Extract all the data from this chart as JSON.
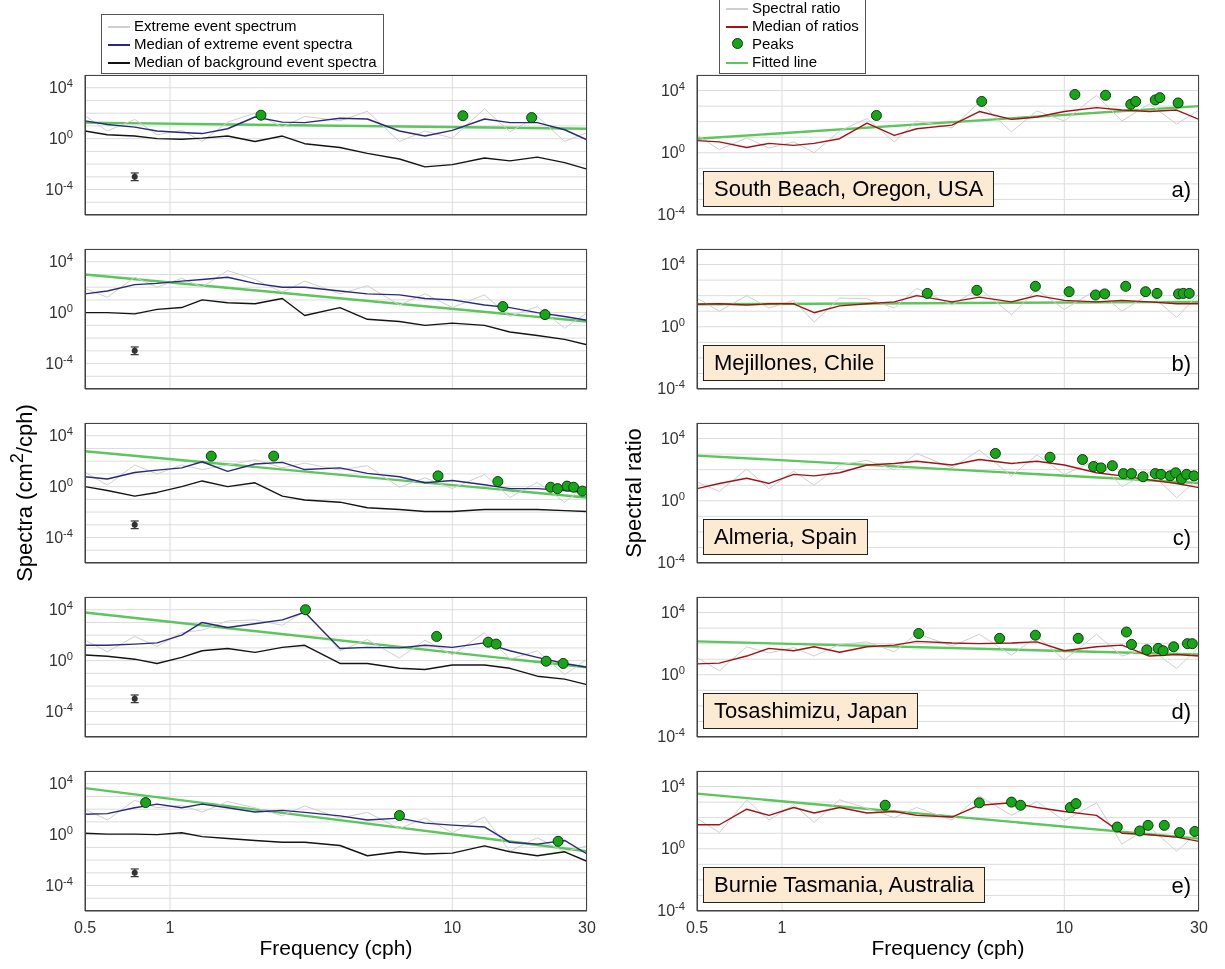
{
  "chart_data": [
    {
      "type": "line",
      "x": [
        0.5,
        0.6,
        0.75,
        0.9,
        1.1,
        1.3,
        1.6,
        2,
        2.5,
        3,
        4,
        5,
        6.5,
        8,
        10,
        13,
        16,
        20,
        25,
        30
      ],
      "xlim": [
        0.5,
        30
      ],
      "xticks": [
        0.5,
        1,
        10,
        30
      ],
      "ylim": [
        1e-06,
        100000
      ],
      "yticks": [
        {
          "value": 1e-06,
          "label": null
        },
        {
          "value": 1e-05,
          "label": null
        },
        {
          "value": 0.0001,
          "label": "10$^{-4}$"
        },
        {
          "value": 0.001,
          "label": null
        },
        {
          "value": 0.01,
          "label": null
        },
        {
          "value": 0.1,
          "label": null
        },
        {
          "value": 1,
          "label": "10$^{0}$"
        },
        {
          "value": 10,
          "label": null
        },
        {
          "value": 100,
          "label": null
        },
        {
          "value": 1000,
          "label": null
        },
        {
          "value": 10000,
          "label": "10$^{4}$"
        },
        {
          "value": 100000,
          "label": null
        }
      ],
      "log": "xy",
      "grid": true,
      "tick_labels": "y",
      "legend": "top left",
      "series": [
        {
          "name": "Extreme event spectrum",
          "color": "#cfcfcf",
          "values": [
            63,
            4,
            32,
            2,
            4.5,
            0.6,
            20,
            100,
            8,
            56,
            25,
            140,
            0.6,
            4,
            1.1,
            220,
            3.5,
            56,
            0.6,
            3
          ]
        },
        {
          "name": "Median of extreme event spectra",
          "color": "#2a2a7a",
          "values": [
            25,
            13,
            8,
            4,
            3,
            2.5,
            6,
            50,
            20,
            18,
            40,
            35,
            4,
            1.6,
            4.5,
            35,
            18,
            18,
            5,
            0.8
          ]
        },
        {
          "name": "Median of background event spectra",
          "color": "#141414",
          "values": [
            4,
            2,
            1.6,
            1,
            0.9,
            1.1,
            1.6,
            0.6,
            1.6,
            0.4,
            0.2,
            0.07,
            0.025,
            0.006,
            0.009,
            0.03,
            0.018,
            0.035,
            0.013,
            0.004
          ]
        },
        {
          "type": "line",
          "color": "#5cc55c",
          "x": [
            0.5,
            30
          ],
          "values": [
            18,
            6
          ]
        },
        {
          "type": "scatter",
          "marker": "circle",
          "color": "#19a519",
          "x": [
            2.1,
            10.9,
            19.1
          ],
          "values": [
            70,
            63,
            45
          ]
        },
        {
          "type": "scatter",
          "color": "#333333",
          "x": [
            0.75
          ],
          "values": [
            0.001
          ],
          "errors": [
            [
              0.0005,
              0.002
            ]
          ]
        }
      ]
    },
    {
      "type": "line",
      "x": [
        0.5,
        0.6,
        0.75,
        0.9,
        1.1,
        1.3,
        1.6,
        2,
        2.5,
        3,
        4,
        5,
        6.5,
        8,
        10,
        13,
        16,
        20,
        25,
        30
      ],
      "xlim": [
        0.5,
        30
      ],
      "xticks": [
        0.5,
        1,
        10,
        30
      ],
      "ylim": [
        1e-06,
        100000
      ],
      "yticks": [
        {
          "value": 1e-06,
          "label": null
        },
        {
          "value": 1e-05,
          "label": null
        },
        {
          "value": 0.0001,
          "label": "10$^{-4}$"
        },
        {
          "value": 0.001,
          "label": null
        },
        {
          "value": 0.01,
          "label": null
        },
        {
          "value": 0.1,
          "label": null
        },
        {
          "value": 1,
          "label": "10$^{0}$"
        },
        {
          "value": 10,
          "label": null
        },
        {
          "value": 100,
          "label": null
        },
        {
          "value": 1000,
          "label": null
        },
        {
          "value": 10000,
          "label": "10$^{4}$"
        },
        {
          "value": 100000,
          "label": null
        }
      ],
      "log": "xy",
      "grid": true,
      "tick_labels": "y",
      "series": [
        {
          "color": "#cfcfcf",
          "values": [
            80,
            16,
            600,
            100,
            500,
            100,
            2000,
            400,
            40,
            300,
            30,
            130,
            4,
            30,
            2.5,
            25,
            0.5,
            3,
            0.06,
            1
          ]
        },
        {
          "color": "#2a2a7a",
          "values": [
            30,
            50,
            160,
            200,
            300,
            400,
            600,
            200,
            100,
            100,
            50,
            30,
            25,
            13,
            10,
            4,
            2.5,
            1,
            0.5,
            0.25
          ]
        },
        {
          "color": "#141414",
          "values": [
            1,
            1,
            0.8,
            1.8,
            2.5,
            10,
            6,
            5,
            13,
            0.6,
            2.5,
            0.3,
            0.2,
            0.1,
            0.15,
            0.1,
            0.03,
            0.016,
            0.008,
            0.003
          ]
        },
        {
          "type": "line",
          "color": "#5cc55c",
          "x": [
            0.5,
            30
          ],
          "values": [
            1000,
            0.2
          ]
        },
        {
          "type": "scatter",
          "marker": "circle",
          "color": "#19a519",
          "x": [
            15.1,
            21.3
          ],
          "values": [
            3,
            0.7
          ]
        },
        {
          "type": "scatter",
          "color": "#333333",
          "x": [
            0.75
          ],
          "values": [
            0.001
          ],
          "errors": [
            [
              0.0005,
              0.002
            ]
          ]
        }
      ]
    },
    {
      "type": "line",
      "x": [
        0.5,
        0.6,
        0.75,
        0.9,
        1.1,
        1.3,
        1.6,
        2,
        2.5,
        3,
        4,
        5,
        6.5,
        8,
        10,
        13,
        16,
        20,
        25,
        30
      ],
      "xlim": [
        0.5,
        30
      ],
      "xticks": [
        0.5,
        1,
        10,
        30
      ],
      "ylim": [
        1e-06,
        100000
      ],
      "yticks": [
        {
          "value": 1e-06,
          "label": null
        },
        {
          "value": 1e-05,
          "label": null
        },
        {
          "value": 0.0001,
          "label": "10$^{-4}$"
        },
        {
          "value": 0.001,
          "label": null
        },
        {
          "value": 0.01,
          "label": null
        },
        {
          "value": 0.1,
          "label": null
        },
        {
          "value": 1,
          "label": "10$^{0}$"
        },
        {
          "value": 10,
          "label": null
        },
        {
          "value": 100,
          "label": null
        },
        {
          "value": 1000,
          "label": null
        },
        {
          "value": 10000,
          "label": "10$^{4}$"
        },
        {
          "value": 100000,
          "label": null
        }
      ],
      "log": "xy",
      "grid": true,
      "tick_labels": "y",
      "ylabel": "Spectra (cm$^{2}$/cph)",
      "series": [
        {
          "color": "#cfcfcf",
          "values": [
            14,
            1.3,
            50,
            10,
            50,
            22,
            50,
            130,
            30,
            70,
            20,
            45,
            0.9,
            5,
            0.7,
            9,
            0.14,
            2.2,
            0.06,
            1.4
          ]
        },
        {
          "color": "#2a2a7a",
          "values": [
            6,
            4,
            13,
            20,
            30,
            90,
            16,
            60,
            80,
            22,
            30,
            11,
            6,
            2,
            3,
            1.4,
            0.7,
            0.7,
            0.5,
            0.35
          ]
        },
        {
          "color": "#141414",
          "values": [
            1,
            0.5,
            0.18,
            0.35,
            1,
            2.8,
            1,
            2,
            0.18,
            0.09,
            0.06,
            0.022,
            0.016,
            0.011,
            0.011,
            0.016,
            0.016,
            0.016,
            0.013,
            0.011
          ]
        },
        {
          "type": "line",
          "color": "#5cc55c",
          "x": [
            0.5,
            30
          ],
          "values": [
            600,
            0.14
          ]
        },
        {
          "type": "scatter",
          "marker": "circle",
          "color": "#19a519",
          "x": [
            1.4,
            2.33,
            8.9,
            14.5,
            22.3,
            23.6,
            25.5,
            26.9,
            28.9
          ],
          "values": [
            250,
            250,
            7,
            2.5,
            0.9,
            0.7,
            1.1,
            0.9,
            0.45
          ]
        },
        {
          "type": "scatter",
          "color": "#333333",
          "x": [
            0.75
          ],
          "values": [
            0.001
          ],
          "errors": [
            [
              0.0005,
              0.002
            ]
          ]
        }
      ]
    },
    {
      "type": "line",
      "x": [
        0.5,
        0.6,
        0.75,
        0.9,
        1.1,
        1.3,
        1.6,
        2,
        2.5,
        3,
        4,
        5,
        6.5,
        8,
        10,
        13,
        16,
        20,
        25,
        30
      ],
      "xlim": [
        0.5,
        30
      ],
      "xticks": [
        0.5,
        1,
        10,
        30
      ],
      "ylim": [
        1e-06,
        100000
      ],
      "yticks": [
        {
          "value": 1e-06,
          "label": null
        },
        {
          "value": 1e-05,
          "label": null
        },
        {
          "value": 0.0001,
          "label": "10$^{-4}$"
        },
        {
          "value": 0.001,
          "label": null
        },
        {
          "value": 0.01,
          "label": null
        },
        {
          "value": 0.1,
          "label": null
        },
        {
          "value": 1,
          "label": "10$^{0}$"
        },
        {
          "value": 10,
          "label": null
        },
        {
          "value": 100,
          "label": null
        },
        {
          "value": 1000,
          "label": null
        },
        {
          "value": 10000,
          "label": "10$^{4}$"
        },
        {
          "value": 100000,
          "label": null
        }
      ],
      "log": "xy",
      "grid": true,
      "tick_labels": "y",
      "series": [
        {
          "color": "#cfcfcf",
          "values": [
            40,
            5,
            80,
            13,
            160,
            250,
            1300,
            1600,
            600,
            8000,
            6,
            45,
            1.6,
            40,
            2.8,
            160,
            1.3,
            6,
            0.08,
            1.3
          ]
        },
        {
          "color": "#2a2a7a",
          "values": [
            16,
            16,
            20,
            25,
            100,
            1000,
            400,
            800,
            1600,
            6300,
            9,
            11,
            10,
            16,
            11,
            25,
            6,
            1.8,
            0.6,
            0.3
          ]
        },
        {
          "color": "#141414",
          "values": [
            2.8,
            2.2,
            1.3,
            0.6,
            1.8,
            6,
            9,
            4.5,
            11,
            16,
            0.6,
            0.6,
            0.25,
            0.2,
            0.45,
            0.45,
            0.25,
            0.06,
            0.035,
            0.013
          ]
        },
        {
          "type": "line",
          "color": "#5cc55c",
          "x": [
            0.5,
            30
          ],
          "values": [
            6000,
            0.3
          ]
        },
        {
          "type": "scatter",
          "marker": "circle",
          "color": "#19a519",
          "x": [
            3.02,
            8.8,
            13.4,
            14.3,
            21.5,
            24.7
          ],
          "values": [
            10000,
            80,
            28,
            20,
            0.9,
            0.6
          ]
        },
        {
          "type": "scatter",
          "color": "#333333",
          "x": [
            0.75
          ],
          "values": [
            0.001
          ],
          "errors": [
            [
              0.0005,
              0.002
            ]
          ]
        }
      ]
    },
    {
      "type": "line",
      "x": [
        0.5,
        0.6,
        0.75,
        0.9,
        1.1,
        1.3,
        1.6,
        2,
        2.5,
        3,
        4,
        5,
        6.5,
        8,
        10,
        13,
        16,
        20,
        25,
        30
      ],
      "xlim": [
        0.5,
        30
      ],
      "xticks": [
        0.5,
        1,
        10,
        30
      ],
      "ylim": [
        1e-06,
        100000
      ],
      "yticks": [
        {
          "value": 1e-06,
          "label": null
        },
        {
          "value": 1e-05,
          "label": null
        },
        {
          "value": 0.0001,
          "label": "10$^{-4}$"
        },
        {
          "value": 0.001,
          "label": null
        },
        {
          "value": 0.01,
          "label": null
        },
        {
          "value": 0.1,
          "label": null
        },
        {
          "value": 1,
          "label": "10$^{0}$"
        },
        {
          "value": 10,
          "label": null
        },
        {
          "value": 100,
          "label": null
        },
        {
          "value": 1000,
          "label": null
        },
        {
          "value": 10000,
          "label": "10$^{4}$"
        },
        {
          "value": 100000,
          "label": null
        }
      ],
      "log": "xy",
      "grid": true,
      "xlabel": "Frequency (cph)",
      "series": [
        {
          "color": "#cfcfcf",
          "values": [
            100,
            14,
            500,
            130,
            200,
            60,
            400,
            130,
            30,
            180,
            20,
            56,
            3,
            20,
            1.4,
            25,
            0.05,
            0.56,
            0.045,
            0.13
          ]
        },
        {
          "color": "#2a2a7a",
          "values": [
            40,
            45,
            130,
            250,
            130,
            250,
            130,
            60,
            80,
            56,
            30,
            14,
            20,
            8,
            5.6,
            4,
            0.25,
            0.18,
            0.35,
            0.03
          ]
        },
        {
          "color": "#141414",
          "values": [
            1.3,
            1.1,
            1.1,
            1,
            1.4,
            0.7,
            0.5,
            0.35,
            0.25,
            0.25,
            0.14,
            0.022,
            0.045,
            0.03,
            0.035,
            0.13,
            0.045,
            0.022,
            0.045,
            0.008
          ]
        },
        {
          "type": "line",
          "color": "#5cc55c",
          "x": [
            0.5,
            30
          ],
          "values": [
            4500,
            0.05
          ]
        },
        {
          "type": "scatter",
          "marker": "circle",
          "color": "#19a519",
          "x": [
            0.82,
            6.5,
            23.7
          ],
          "values": [
            330,
            32,
            0.3
          ]
        },
        {
          "type": "scatter",
          "color": "#333333",
          "x": [
            0.75
          ],
          "values": [
            0.001
          ],
          "errors": [
            [
              0.0005,
              0.002
            ]
          ]
        }
      ]
    },
    {
      "type": "line",
      "x": [
        0.5,
        0.6,
        0.75,
        0.9,
        1.1,
        1.3,
        1.6,
        2,
        2.5,
        3,
        4,
        5,
        6.5,
        8,
        10,
        13,
        16,
        20,
        25,
        30
      ],
      "xlim": [
        0.5,
        30
      ],
      "xticks": [
        0.5,
        1,
        10,
        30
      ],
      "ylim": [
        0.0001,
        100000
      ],
      "yticks": [
        {
          "value": 0.0001,
          "label": "10$^{-4}$"
        },
        {
          "value": 0.001,
          "label": null
        },
        {
          "value": 0.01,
          "label": null
        },
        {
          "value": 0.1,
          "label": null
        },
        {
          "value": 1,
          "label": "10$^{0}$"
        },
        {
          "value": 10,
          "label": null
        },
        {
          "value": 100,
          "label": null
        },
        {
          "value": 1000,
          "label": null
        },
        {
          "value": 10000,
          "label": "10$^{4}$"
        },
        {
          "value": 100000,
          "label": null
        }
      ],
      "log": "xy",
      "grid": true,
      "tick_labels": "y",
      "legend": "top left",
      "annotations": [
        "South Beach, Oregon, USA",
        "a)"
      ],
      "series": [
        {
          "name": "Spectral ratio",
          "color": "#cfcfcf",
          "values": [
            14,
            1.6,
            9,
            2,
            5,
            1,
            25,
            160,
            5,
            110,
            40,
            1800,
            22,
            500,
            110,
            5000,
            110,
            1400,
            70,
            560
          ]
        },
        {
          "name": "Median of ratios",
          "color": "#a01414",
          "values": [
            6,
            5,
            2.2,
            4,
            3,
            4,
            8,
            80,
            13,
            35,
            60,
            450,
            140,
            200,
            450,
            800,
            560,
            450,
            560,
            140
          ]
        },
        {
          "name": "Peaks",
          "type": "scatter",
          "marker": "circle",
          "color": "#19a519",
          "x": [
            2.16,
            5.1,
            10.9,
            14,
            17.2,
            17.9,
            21,
            21.8,
            25.3
          ],
          "values": [
            250,
            2000,
            5600,
            5000,
            1300,
            2000,
            2500,
            3500,
            1600
          ]
        },
        {
          "name": "Fitted line",
          "type": "line",
          "color": "#5cc55c",
          "x": [
            0.5,
            30
          ],
          "values": [
            8,
            1000
          ]
        }
      ]
    },
    {
      "type": "line",
      "x": [
        0.5,
        0.6,
        0.75,
        0.9,
        1.1,
        1.3,
        1.6,
        2,
        2.5,
        3,
        4,
        5,
        6.5,
        8,
        10,
        13,
        16,
        20,
        25,
        30
      ],
      "xlim": [
        0.5,
        30
      ],
      "xticks": [
        0.5,
        1,
        10,
        30
      ],
      "ylim": [
        0.0001,
        100000
      ],
      "yticks": [
        {
          "value": 0.0001,
          "label": "10$^{-4}$"
        },
        {
          "value": 0.001,
          "label": null
        },
        {
          "value": 0.01,
          "label": null
        },
        {
          "value": 0.1,
          "label": null
        },
        {
          "value": 1,
          "label": "10$^{0}$"
        },
        {
          "value": 10,
          "label": null
        },
        {
          "value": 100,
          "label": null
        },
        {
          "value": 1000,
          "label": null
        },
        {
          "value": 10000,
          "label": "10$^{4}$"
        },
        {
          "value": 100000,
          "label": null
        }
      ],
      "log": "xy",
      "grid": true,
      "tick_labels": "y",
      "annotations": [
        "Mejillones, Chile",
        "b)"
      ],
      "series": [
        {
          "color": "#cfcfcf",
          "values": [
            70,
            10,
            100,
            16,
            50,
            2,
            70,
            63,
            16,
            300,
            25,
            300,
            6,
            250,
            13,
            250,
            10,
            130,
            4,
            130
          ]
        },
        {
          "color": "#a01414",
          "values": [
            28,
            30,
            25,
            30,
            30,
            8,
            22,
            30,
            40,
            100,
            40,
            80,
            40,
            100,
            50,
            40,
            50,
            40,
            30,
            30
          ]
        },
        {
          "type": "scatter",
          "marker": "circle",
          "color": "#19a519",
          "x": [
            3.27,
            4.9,
            7.9,
            10.4,
            12.9,
            13.9,
            16.5,
            19.4,
            21.3,
            25.4,
            26.4,
            27.7
          ],
          "values": [
            140,
            220,
            400,
            180,
            110,
            130,
            400,
            180,
            140,
            130,
            140,
            140
          ]
        },
        {
          "type": "line",
          "color": "#5cc55c",
          "x": [
            0.5,
            30
          ],
          "values": [
            28,
            40
          ]
        }
      ]
    },
    {
      "type": "line",
      "x": [
        0.5,
        0.6,
        0.75,
        0.9,
        1.1,
        1.3,
        1.6,
        2,
        2.5,
        3,
        4,
        5,
        6.5,
        8,
        10,
        13,
        16,
        20,
        25,
        30
      ],
      "xlim": [
        0.5,
        30
      ],
      "xticks": [
        0.5,
        1,
        10,
        30
      ],
      "ylim": [
        0.0001,
        100000
      ],
      "yticks": [
        {
          "value": 0.0001,
          "label": "10$^{-4}$"
        },
        {
          "value": 0.001,
          "label": null
        },
        {
          "value": 0.01,
          "label": null
        },
        {
          "value": 0.1,
          "label": null
        },
        {
          "value": 1,
          "label": "10$^{0}$"
        },
        {
          "value": 10,
          "label": null
        },
        {
          "value": 100,
          "label": null
        },
        {
          "value": 1000,
          "label": null
        },
        {
          "value": 10000,
          "label": "10$^{4}$"
        },
        {
          "value": 100000,
          "label": null
        }
      ],
      "log": "xy",
      "grid": true,
      "tick_labels": "y",
      "ylabel": "Spectral ratio",
      "annotations": [
        "Almeria, Spain",
        "c)"
      ],
      "series": [
        {
          "color": "#cfcfcf",
          "values": [
            16,
            4,
            110,
            6,
            80,
            10,
            200,
            400,
            100,
            1100,
            130,
            1800,
            40,
            900,
            50,
            400,
            8,
            70,
            1.6,
            28
          ]
        },
        {
          "color": "#a01414",
          "values": [
            6,
            13,
            28,
            13,
            50,
            40,
            63,
            200,
            250,
            350,
            200,
            450,
            250,
            350,
            200,
            63,
            40,
            22,
            13,
            7
          ]
        },
        {
          "type": "scatter",
          "marker": "circle",
          "color": "#19a519",
          "x": [
            5.7,
            8.9,
            11.6,
            12.7,
            13.5,
            14.8,
            16.2,
            17.3,
            19,
            21,
            22,
            23.7,
            24.8,
            26,
            27.1,
            28.8
          ],
          "values": [
            1100,
            630,
            450,
            160,
            130,
            180,
            56,
            56,
            35,
            56,
            50,
            40,
            63,
            25,
            50,
            40
          ]
        },
        {
          "type": "line",
          "color": "#5cc55c",
          "x": [
            0.5,
            30
          ],
          "values": [
            800,
            14
          ]
        }
      ]
    },
    {
      "type": "line",
      "x": [
        0.5,
        0.6,
        0.75,
        0.9,
        1.1,
        1.3,
        1.6,
        2,
        2.5,
        3,
        4,
        5,
        6.5,
        8,
        10,
        13,
        16,
        20,
        25,
        30
      ],
      "xlim": [
        0.5,
        30
      ],
      "xticks": [
        0.5,
        1,
        10,
        30
      ],
      "ylim": [
        0.0001,
        100000
      ],
      "yticks": [
        {
          "value": 0.0001,
          "label": "10$^{-4}$"
        },
        {
          "value": 0.001,
          "label": null
        },
        {
          "value": 0.01,
          "label": null
        },
        {
          "value": 0.1,
          "label": null
        },
        {
          "value": 1,
          "label": "10$^{0}$"
        },
        {
          "value": 10,
          "label": null
        },
        {
          "value": 100,
          "label": null
        },
        {
          "value": 1000,
          "label": null
        },
        {
          "value": 10000,
          "label": "10$^{4}$"
        },
        {
          "value": 100000,
          "label": null
        }
      ],
      "log": "xy",
      "grid": true,
      "tick_labels": "y",
      "annotations": [
        "Tosashimizu, Japan",
        "d)"
      ],
      "series": [
        {
          "color": "#cfcfcf",
          "values": [
            13,
            1.8,
            63,
            25,
            56,
            16,
            90,
            130,
            30,
            450,
            70,
            400,
            18,
            300,
            9,
            400,
            16,
            50,
            2.5,
            63
          ]
        },
        {
          "color": "#a01414",
          "values": [
            5,
            5.6,
            16,
            50,
            35,
            63,
            28,
            63,
            80,
            140,
            110,
            100,
            110,
            130,
            35,
            63,
            80,
            16,
            20,
            16
          ]
        },
        {
          "type": "scatter",
          "marker": "circle",
          "color": "#19a519",
          "x": [
            3.05,
            5.9,
            7.9,
            11.2,
            16.6,
            17.3,
            19.6,
            21.5,
            22.4,
            24.4,
            27.3,
            28.4
          ],
          "values": [
            450,
            220,
            350,
            220,
            560,
            90,
            40,
            50,
            35,
            63,
            100,
            100
          ]
        },
        {
          "type": "line",
          "color": "#5cc55c",
          "x": [
            0.5,
            30
          ],
          "values": [
            140,
            20
          ]
        }
      ]
    },
    {
      "type": "line",
      "x": [
        0.5,
        0.6,
        0.75,
        0.9,
        1.1,
        1.3,
        1.6,
        2,
        2.5,
        3,
        4,
        5,
        6.5,
        8,
        10,
        13,
        16,
        20,
        25,
        30
      ],
      "xlim": [
        0.5,
        30
      ],
      "xticks": [
        0.5,
        1,
        10,
        30
      ],
      "ylim": [
        0.0001,
        100000
      ],
      "yticks": [
        {
          "value": 0.0001,
          "label": "10$^{-4}$"
        },
        {
          "value": 0.001,
          "label": null
        },
        {
          "value": 0.01,
          "label": null
        },
        {
          "value": 0.1,
          "label": null
        },
        {
          "value": 1,
          "label": "10$^{0}$"
        },
        {
          "value": 10,
          "label": null
        },
        {
          "value": 100,
          "label": null
        },
        {
          "value": 1000,
          "label": null
        },
        {
          "value": 10000,
          "label": "10$^{4}$"
        },
        {
          "value": 100000,
          "label": null
        }
      ],
      "log": "xy",
      "grid": true,
      "xlabel": "Frequency (cph)",
      "annotations": [
        "Burnie Tasmania, Australia",
        "e)"
      ],
      "series": [
        {
          "color": "#cfcfcf",
          "values": [
            90,
            11,
            1400,
            70,
            700,
            50,
            1400,
            400,
            100,
            450,
            70,
            2500,
            140,
            1100,
            63,
            900,
            2,
            25,
            0.7,
            13
          ]
        },
        {
          "color": "#a01414",
          "values": [
            35,
            35,
            350,
            140,
            450,
            200,
            450,
            200,
            250,
            140,
            110,
            630,
            900,
            450,
            250,
            140,
            10,
            8,
            5.6,
            3
          ]
        },
        {
          "type": "scatter",
          "marker": "circle",
          "color": "#19a519",
          "x": [
            2.32,
            5,
            6.5,
            7,
            10.5,
            11,
            15.4,
            18.5,
            19.8,
            22.6,
            25.6,
            29
          ],
          "values": [
            630,
            900,
            1000,
            630,
            450,
            800,
            25,
            14,
            32,
            32,
            11,
            13
          ]
        },
        {
          "type": "line",
          "color": "#5cc55c",
          "x": [
            0.5,
            30
          ],
          "values": [
            3500,
            4.5
          ]
        }
      ]
    }
  ]
}
